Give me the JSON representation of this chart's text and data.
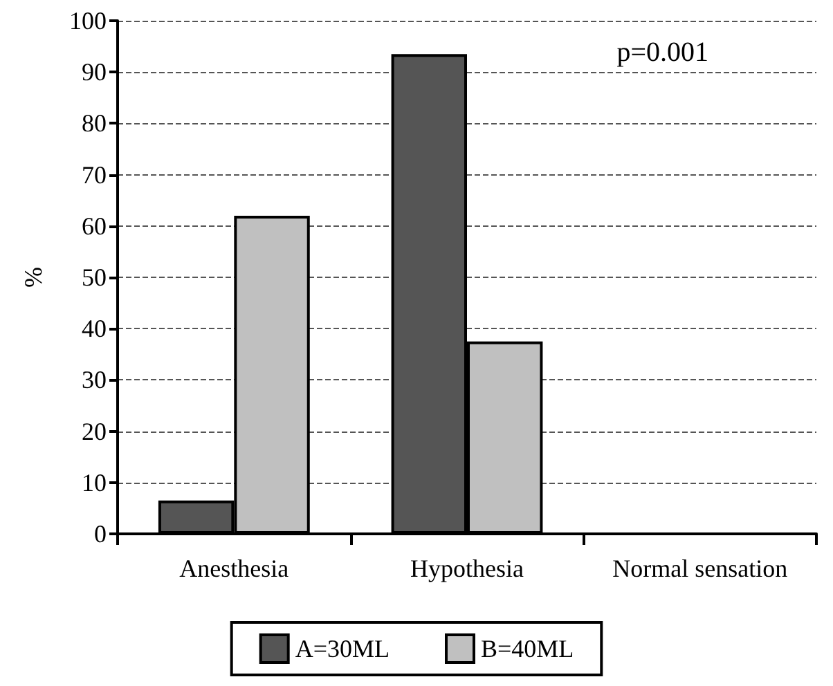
{
  "chart_data": {
    "type": "bar",
    "ylabel": "%",
    "categories": [
      "Anesthesia",
      "Hypothesia",
      "Normal sensation"
    ],
    "series": [
      {
        "name": "A=30ML",
        "color": "#555555",
        "values": [
          6.5,
          93.5,
          0
        ]
      },
      {
        "name": "B=40ML",
        "color": "#c0c0c0",
        "values": [
          62,
          37.5,
          0
        ]
      }
    ],
    "ylim": [
      0,
      100
    ],
    "yticks": [
      0,
      10,
      20,
      30,
      40,
      50,
      60,
      70,
      80,
      90,
      100
    ],
    "grid": "y",
    "legend": "bottom",
    "annotations": [
      "p=0.001"
    ]
  }
}
